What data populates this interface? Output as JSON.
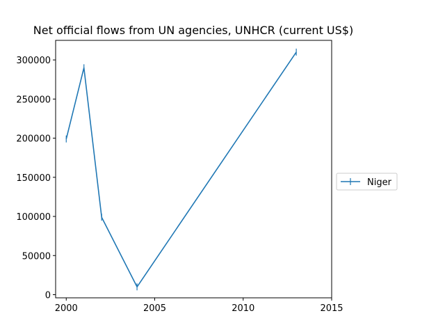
{
  "chart_data": {
    "type": "line",
    "title": "Net official flows from UN agencies, UNHCR (current US$)",
    "xlabel": "",
    "ylabel": "",
    "xlim": [
      1999.4,
      2015
    ],
    "ylim": [
      -4000,
      325000
    ],
    "x_ticks": [
      2000,
      2005,
      2010,
      2015
    ],
    "x_tick_labels": [
      "2000",
      "2005",
      "2010",
      "2015"
    ],
    "y_ticks": [
      0,
      50000,
      100000,
      150000,
      200000,
      250000,
      300000
    ],
    "y_tick_labels": [
      "0",
      "50000",
      "100000",
      "150000",
      "200000",
      "250000",
      "300000"
    ],
    "grid": false,
    "legend_position": "right",
    "series": [
      {
        "name": "Niger",
        "color": "#1f77b4",
        "marker": "vertical-line",
        "x": [
          2000,
          2001,
          2002,
          2004,
          2013
        ],
        "y": [
          199000,
          290000,
          99000,
          10000,
          310000
        ]
      }
    ]
  }
}
